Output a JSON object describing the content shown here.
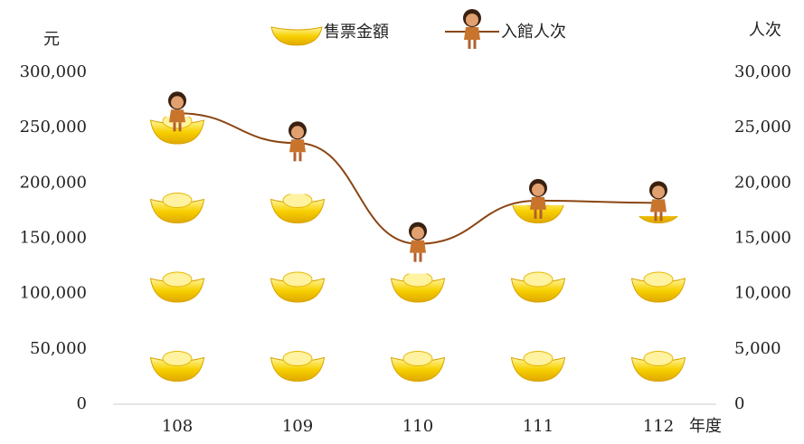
{
  "chart_data": {
    "type": "pictograph-combo",
    "y_label": "元",
    "y2_label": "人次",
    "x_label": "年度",
    "categories": [
      "108",
      "109",
      "110",
      "111",
      "112"
    ],
    "series": [
      {
        "name": "售票金額",
        "type": "bar",
        "color": "#f5c400",
        "values": [
          260000,
          190000,
          118000,
          180000,
          170000
        ]
      },
      {
        "name": "入館人次",
        "type": "line",
        "axis": "y2",
        "color": "#8b4513",
        "values": [
          26300,
          23600,
          14500,
          18400,
          18200
        ]
      }
    ],
    "ylim": [
      0,
      300000
    ],
    "yticks": [
      0,
      {
        "value": 50000,
        "label": "50,000"
      },
      {
        "value": 100000,
        "label": "100,000"
      },
      {
        "value": 150000,
        "label": "150,000"
      },
      {
        "value": 200000,
        "label": "200,000"
      },
      {
        "value": 250000,
        "label": "250,000"
      },
      {
        "value": 300000,
        "label": "300,000"
      }
    ],
    "y2lim": [
      0,
      30000
    ],
    "y2ticks": [
      0,
      {
        "value": 5000,
        "label": "5,000"
      },
      {
        "value": 10000,
        "label": "10,000"
      },
      {
        "value": 15000,
        "label": "15,000"
      },
      {
        "value": 20000,
        "label": "20,000"
      },
      {
        "value": 25000,
        "label": "25,000"
      },
      {
        "value": 30000,
        "label": "30,000"
      }
    ]
  }
}
